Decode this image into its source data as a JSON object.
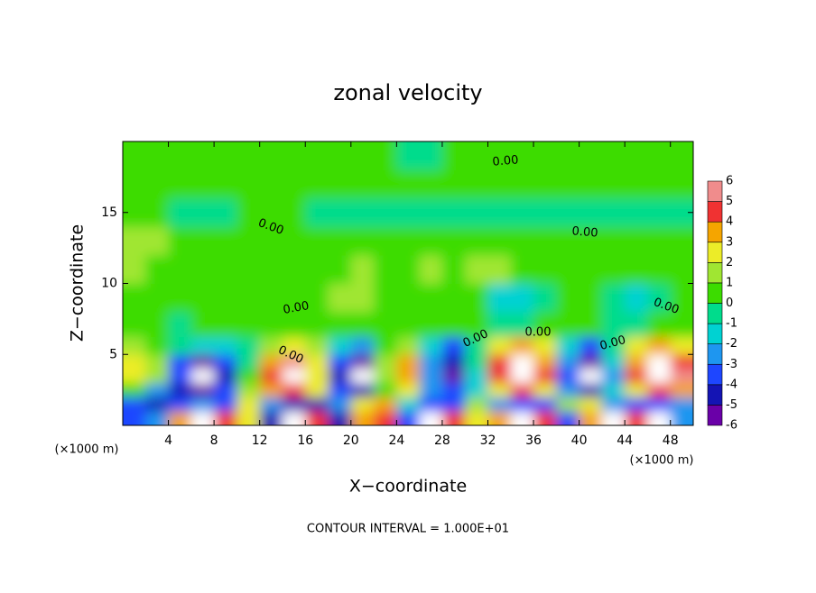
{
  "chart_data": {
    "type": "contour",
    "title": "zonal velocity",
    "xlabel": "X−coordinate",
    "ylabel": "Z−coordinate",
    "x_unit": "(×1000 m)",
    "y_unit": "(×1000 m)",
    "footer": "CONTOUR INTERVAL = 1.000E+01",
    "contour_labels": [
      "0.00",
      "0.00",
      "0.00",
      "0.00",
      "0.00",
      "0.00",
      "0.00",
      "0.00",
      "0.00"
    ],
    "xlim": [
      0,
      50
    ],
    "ylim": [
      0,
      20
    ],
    "xticks": [
      4,
      8,
      12,
      16,
      20,
      24,
      28,
      32,
      36,
      40,
      44,
      48
    ],
    "yticks": [
      5,
      10,
      15
    ],
    "x": [
      1,
      3,
      5,
      7,
      9,
      11,
      13,
      15,
      17,
      19,
      21,
      23,
      25,
      27,
      29,
      31,
      33,
      35,
      37,
      39,
      41,
      43,
      45,
      47,
      49
    ],
    "y": [
      0.5,
      1.5,
      2.5,
      3.5,
      4.5,
      5.5,
      7,
      9,
      11,
      13,
      15,
      17,
      19
    ],
    "z": [
      [
        -3,
        -2,
        4,
        7,
        5,
        3,
        -4,
        7,
        5,
        -4,
        4,
        5,
        -3,
        7,
        5,
        3,
        4,
        7,
        5,
        -3,
        4,
        7,
        5,
        7,
        -2
      ],
      [
        -3,
        -4,
        -3,
        -2,
        -3,
        3,
        -2,
        -4,
        -4,
        -2,
        3,
        4,
        -1,
        -3,
        -3,
        2,
        -2,
        -3,
        -3,
        2,
        3,
        -2,
        -3,
        -3,
        -2
      ],
      [
        1,
        -2,
        -4,
        -5,
        -3,
        2,
        4,
        5,
        3,
        -3,
        -4,
        1,
        3,
        -2,
        -3,
        -1,
        3,
        5,
        3,
        -2,
        -4,
        -1,
        3,
        5,
        4
      ],
      [
        3,
        2,
        -3,
        -7,
        -4,
        1,
        5,
        7,
        3,
        -4,
        -7,
        2,
        4,
        -2,
        -5,
        -1,
        5,
        8,
        5,
        -3,
        -7,
        -2,
        5,
        8,
        6
      ],
      [
        3,
        2,
        -3,
        -5,
        -3,
        0,
        4,
        6,
        3,
        -3,
        -6,
        2,
        4,
        -2,
        -4,
        0,
        5,
        7,
        4,
        -2,
        -5,
        -1,
        4,
        7,
        5
      ],
      [
        2,
        1,
        0,
        -1,
        -1,
        0,
        2,
        3,
        2,
        -1,
        -2,
        1,
        2,
        -1,
        -3,
        0,
        3,
        4,
        3,
        -1,
        -3,
        0,
        3,
        4,
        3
      ],
      [
        0.5,
        0.3,
        -0.5,
        0.2,
        0.5,
        0.3,
        0.5,
        0.8,
        0.4,
        0.3,
        0.6,
        0.2,
        0.5,
        0.4,
        0.8,
        0.3,
        -0.5,
        -0.3,
        0.2,
        0.5,
        0.3,
        -0.4,
        -0.5,
        0.3,
        0.5
      ],
      [
        0.5,
        0.8,
        0.4,
        0.6,
        0.3,
        0.5,
        0.7,
        0.4,
        0.6,
        1.2,
        1.5,
        1.0,
        0.6,
        0.4,
        0.5,
        0.3,
        -1.2,
        -1.5,
        -0.5,
        0.4,
        0.3,
        -0.8,
        -1.5,
        -0.5,
        0.4
      ],
      [
        1.2,
        1.0,
        0.8,
        0.6,
        1.0,
        0.8,
        0.5,
        0.6,
        0.8,
        1.0,
        1.2,
        0.9,
        0.8,
        1.1,
        1.0,
        1.4,
        1.2,
        0.8,
        0.6,
        0.8,
        0.7,
        0.5,
        0.8,
        0.6,
        1.0
      ],
      [
        1.4,
        1.2,
        0.5,
        0.4,
        0.3,
        0.6,
        0.5,
        0.4,
        0.3,
        0.5,
        0.4,
        0.6,
        0.5,
        0.8,
        0.6,
        0.5,
        0.4,
        0.3,
        0.5,
        0.4,
        0.3,
        0.2,
        0.4,
        0.3,
        0.5
      ],
      [
        0.4,
        0.3,
        -0.4,
        -0.6,
        -0.3,
        0.3,
        0.4,
        0.5,
        -0.3,
        -0.5,
        -0.4,
        -0.3,
        -0.5,
        -0.6,
        -0.5,
        -0.4,
        -0.3,
        -0.5,
        -0.6,
        -0.5,
        -0.3,
        -0.4,
        -0.3,
        -0.5,
        -0.6
      ],
      [
        0.6,
        0.5,
        0.4,
        0.3,
        0.5,
        0.4,
        0.6,
        0.5,
        0.4,
        0.5,
        0.6,
        0.4,
        0.5,
        0.3,
        0.2,
        0.4,
        0.5,
        0.6,
        0.4,
        0.3,
        0.5,
        0.4,
        0.3,
        0.5,
        0.4
      ],
      [
        0.5,
        0.6,
        0.4,
        0.5,
        0.6,
        0.5,
        0.4,
        0.6,
        0.5,
        0.4,
        0.3,
        0.5,
        -0.3,
        -0.4,
        0.3,
        0.4,
        0.5,
        0.4,
        0.3,
        0.5,
        0.6,
        0.5,
        0.4,
        0.3,
        0.5
      ]
    ],
    "colorbar": {
      "levels": [
        -6,
        -5,
        -4,
        -3,
        -2,
        -1,
        0,
        1,
        2,
        3,
        4,
        5,
        6
      ],
      "colors": [
        "#6a00a8",
        "#1414b4",
        "#1e46ff",
        "#1e96f0",
        "#00d2d2",
        "#00dc8c",
        "#3cdc00",
        "#a0e632",
        "#ecec28",
        "#f5a500",
        "#f03232",
        "#f08c8c"
      ]
    }
  }
}
